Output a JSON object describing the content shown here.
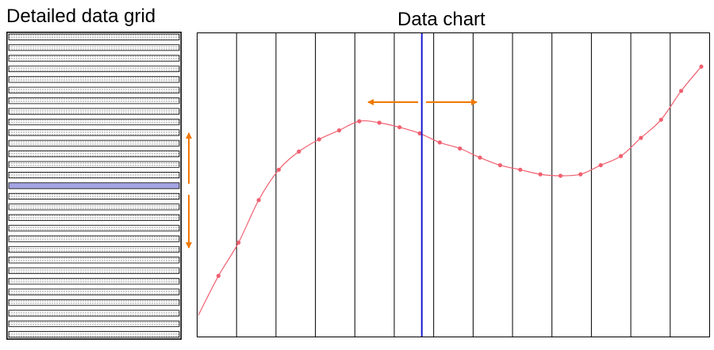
{
  "grid_panel": {
    "title": "Detailed data grid",
    "row_count": 29,
    "highlighted_row": 14,
    "row_fill": "dotted",
    "highlight_color": "#5a5acc"
  },
  "chart_panel": {
    "title": "Data chart",
    "column_count": 13,
    "cursor_column_index": 5,
    "cursor_color": "#1a1acc",
    "arrow_color": "#f07800",
    "line_color": "#f06070"
  },
  "chart_data": {
    "type": "line",
    "x": [
      0,
      1,
      2,
      3,
      4,
      5,
      6,
      7,
      8,
      9,
      10,
      11,
      12,
      13,
      14,
      15,
      16,
      17,
      18,
      19,
      20,
      21,
      22,
      23,
      24,
      25
    ],
    "values": [
      0.07,
      0.2,
      0.31,
      0.45,
      0.55,
      0.61,
      0.65,
      0.68,
      0.71,
      0.705,
      0.69,
      0.67,
      0.64,
      0.62,
      0.59,
      0.565,
      0.55,
      0.535,
      0.53,
      0.535,
      0.565,
      0.595,
      0.655,
      0.715,
      0.81,
      0.89
    ],
    "ylim": [
      0,
      1
    ],
    "grid": "vertical"
  }
}
